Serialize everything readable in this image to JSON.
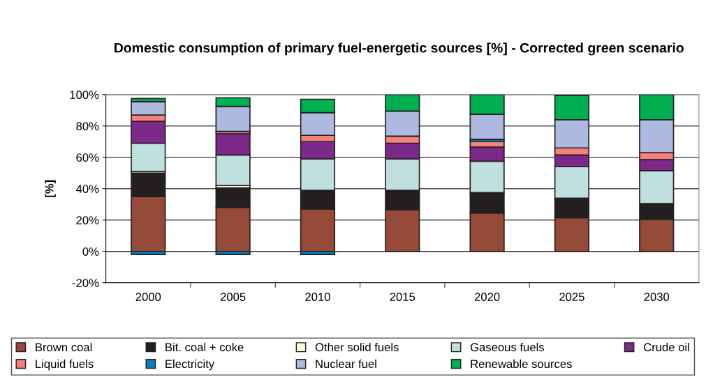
{
  "chart_data": {
    "type": "bar",
    "stacked": true,
    "title": "Domestic consumption of primary fuel-energetic sources [%] - Corrected green scenario",
    "ylabel": "[%]",
    "categories": [
      "2000",
      "2005",
      "2010",
      "2015",
      "2020",
      "2025",
      "2030"
    ],
    "series": [
      {
        "name": "Brown coal",
        "color": "#954a37",
        "values": [
          35,
          28,
          27,
          26.5,
          24.5,
          21.5,
          20.5
        ]
      },
      {
        "name": "Bit. coal + coke",
        "color": "#231f20",
        "values": [
          15,
          12.5,
          12,
          12.5,
          13,
          12.5,
          10
        ]
      },
      {
        "name": "Other solid fuels",
        "color": "#fffbd5",
        "values": [
          1,
          1.5,
          null,
          0,
          0,
          0,
          0
        ]
      },
      {
        "name": "Gaseous fuels",
        "color": "#c0e0e0",
        "values": [
          18,
          19.5,
          20,
          20,
          20,
          20,
          21
        ]
      },
      {
        "name": "Crude oil",
        "color": "#7b2a8a",
        "values": [
          14,
          13.5,
          11,
          10,
          9,
          7.5,
          7
        ]
      },
      {
        "name": "Liquid fuels",
        "color": "#f6807a",
        "values": [
          4,
          1.5,
          4,
          4.5,
          3.5,
          4.5,
          4.5
        ]
      },
      {
        "name": "Electricity",
        "color": "#0a7ac2",
        "values": [
          -2,
          -2,
          -2,
          0,
          1.5,
          null,
          0
        ]
      },
      {
        "name": "Nuclear fuel",
        "color": "#adb9df",
        "values": [
          8.5,
          16,
          14.5,
          16,
          16,
          18,
          21
        ]
      },
      {
        "name": "Renewable sources",
        "color": "#00b050",
        "values": [
          2,
          5.5,
          8.5,
          10.5,
          12.5,
          15.5,
          16
        ]
      }
    ],
    "ylim": [
      -20,
      100
    ],
    "yticks": [
      {
        "value": -20,
        "label": "-20%"
      },
      {
        "value": 0,
        "label": "0%"
      },
      {
        "value": 20,
        "label": "20%"
      },
      {
        "value": 40,
        "label": "40%"
      },
      {
        "value": 60,
        "label": "60%"
      },
      {
        "value": 80,
        "label": "80%"
      },
      {
        "value": 100,
        "label": "100%"
      }
    ],
    "grid": "y",
    "legend": "bottom"
  }
}
